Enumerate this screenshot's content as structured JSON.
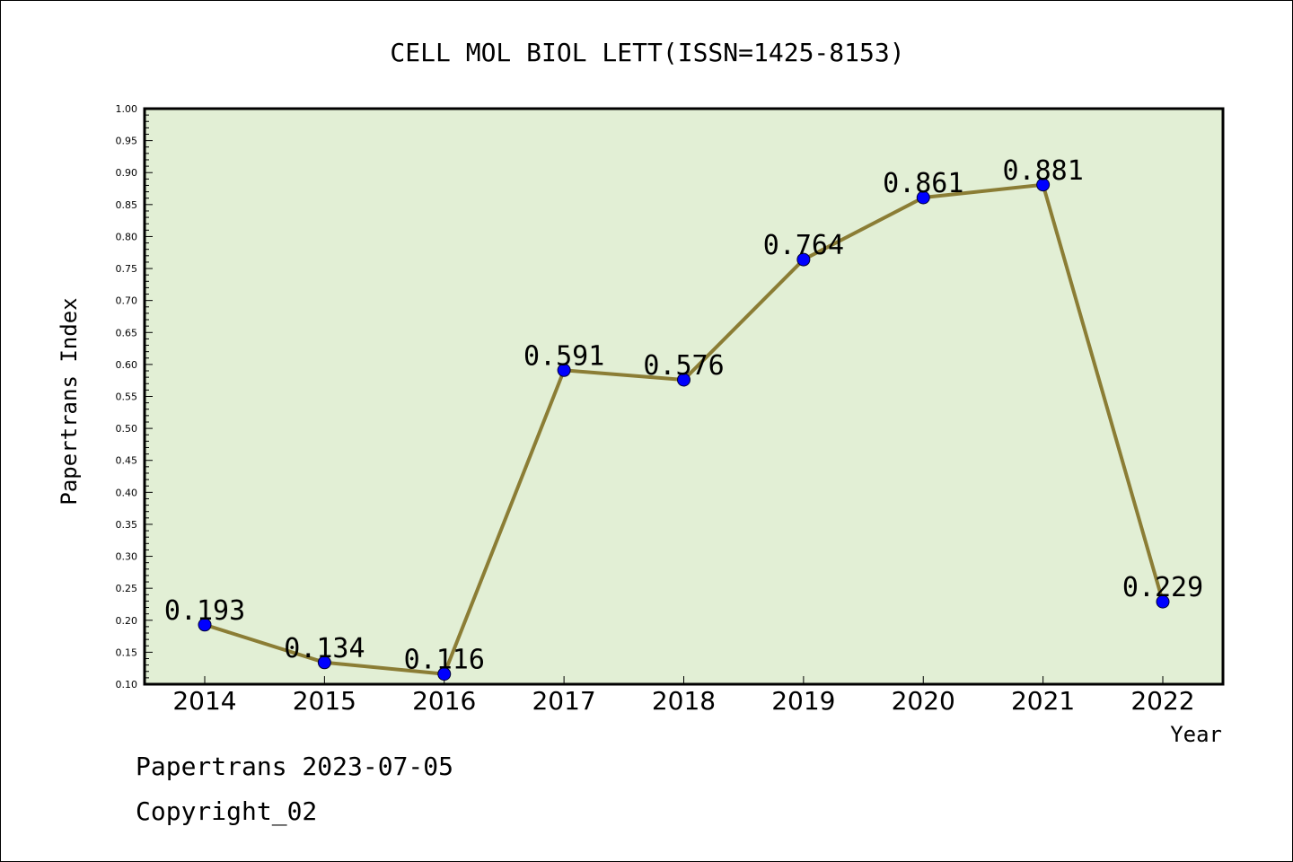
{
  "chart_data": {
    "type": "line",
    "title": "CELL MOL BIOL LETT(ISSN=1425-8153)",
    "xlabel": "Year",
    "ylabel": "Papertrans Index",
    "categories": [
      "2014",
      "2015",
      "2016",
      "2017",
      "2018",
      "2019",
      "2020",
      "2021",
      "2022"
    ],
    "values": [
      0.193,
      0.134,
      0.116,
      0.591,
      0.576,
      0.764,
      0.861,
      0.881,
      0.229
    ],
    "data_labels": [
      "0.193",
      "0.134",
      "0.116",
      "0.591",
      "0.576",
      "0.764",
      "0.861",
      "0.881",
      "0.229"
    ],
    "ylim": [
      0.1,
      1.0
    ],
    "yticks": [
      "0.10",
      "0.15",
      "0.20",
      "0.25",
      "0.30",
      "0.35",
      "0.40",
      "0.45",
      "0.50",
      "0.55",
      "0.60",
      "0.65",
      "0.70",
      "0.75",
      "0.80",
      "0.85",
      "0.90",
      "0.95",
      "1.00"
    ],
    "grid": false,
    "colors": {
      "line": "#8b7d35",
      "marker": "#0000ff",
      "plot_background": "#e2efd5"
    }
  },
  "footer": {
    "line1": "Papertrans 2023-07-05",
    "line2": "Copyright_02"
  }
}
